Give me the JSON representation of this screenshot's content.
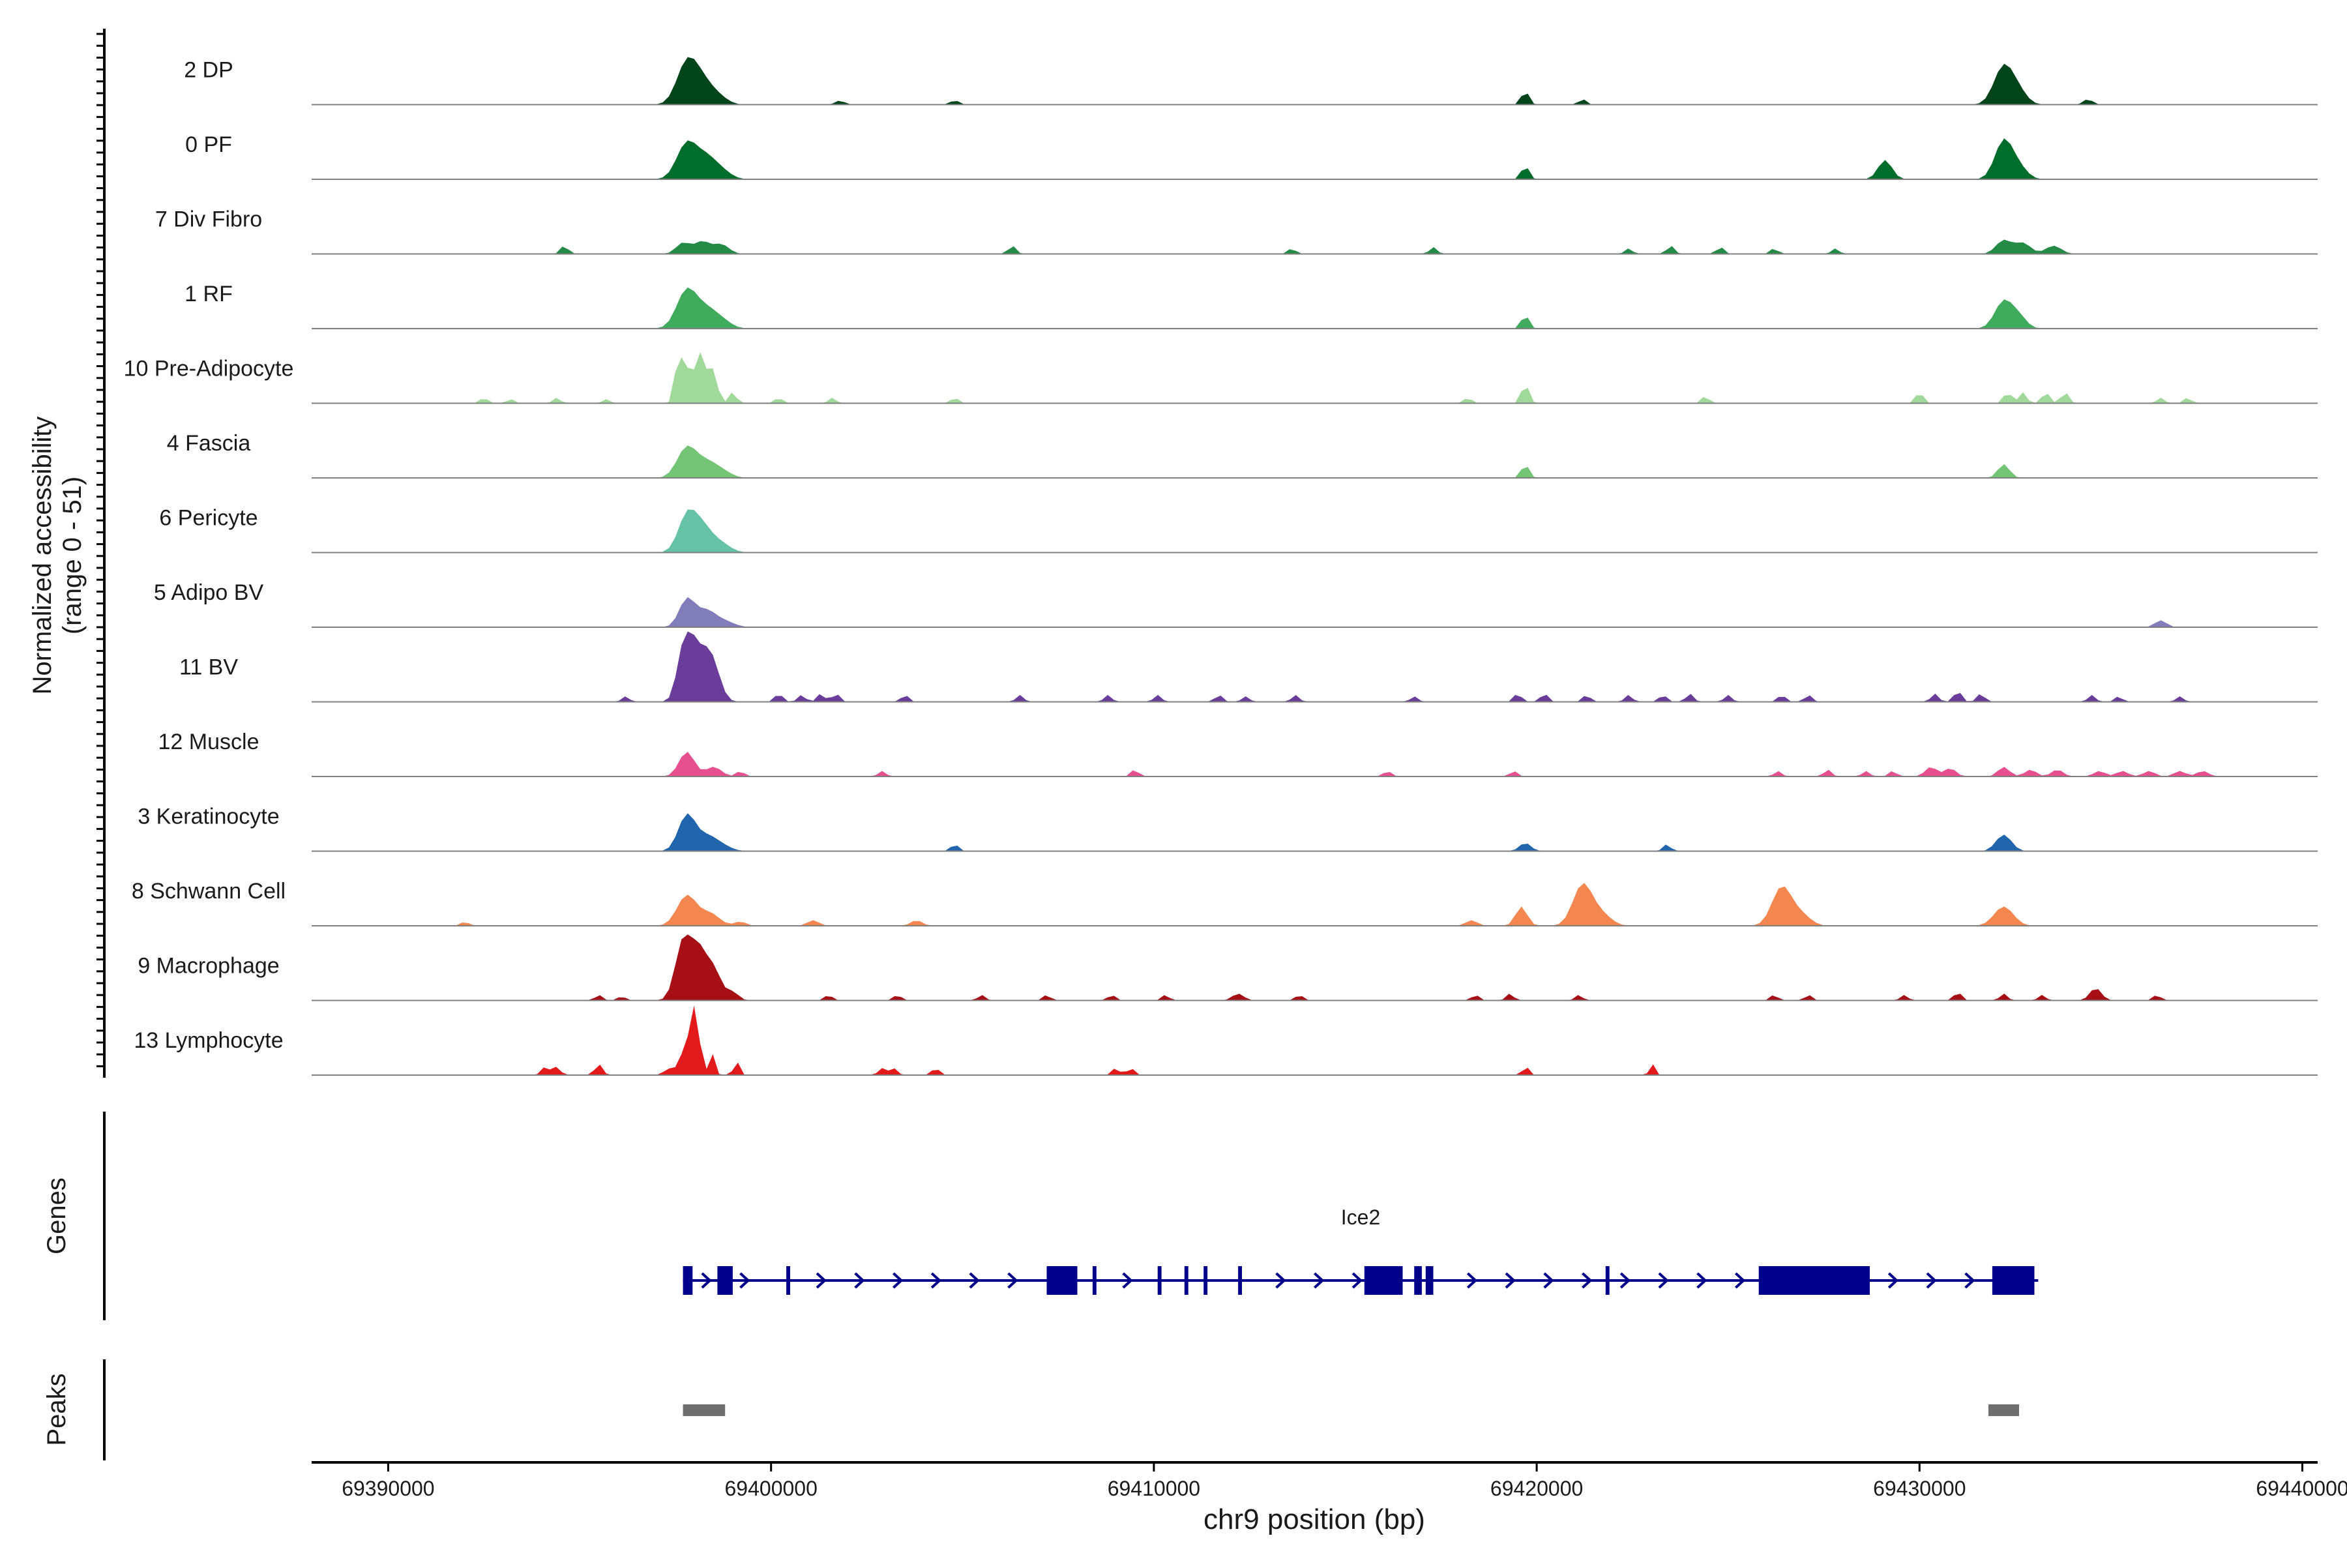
{
  "chart_data": {
    "type": "area",
    "title": "",
    "ylabel_line1": "Normalized accessibility",
    "ylabel_line2": "(range 0 - 51)",
    "yrange": [
      0,
      51
    ],
    "xlabel": "chr9 position (bp)",
    "xlim": [
      69388000,
      69440400
    ],
    "xticks": [
      69390000,
      69400000,
      69410000,
      69420000,
      69430000,
      69440000
    ],
    "xtick_labels": [
      "69390000",
      "69400000",
      "69410000",
      "69420000",
      "69430000",
      "69440000"
    ],
    "tracks": [
      {
        "name": "2 DP",
        "color": "#00441b",
        "peaks": [
          [
            69397800,
            30,
            260
          ],
          [
            69398200,
            14,
            250
          ],
          [
            69398600,
            6,
            250
          ],
          [
            69401800,
            3,
            120
          ],
          [
            69404800,
            3,
            120
          ],
          [
            69419700,
            10,
            100
          ],
          [
            69421200,
            4,
            100
          ],
          [
            69432200,
            28,
            250
          ],
          [
            69432600,
            8,
            220
          ],
          [
            69434400,
            4,
            120
          ]
        ]
      },
      {
        "name": "0 PF",
        "color": "#006d2c",
        "peaks": [
          [
            69397800,
            26,
            260
          ],
          [
            69398300,
            14,
            250
          ],
          [
            69398700,
            6,
            250
          ],
          [
            69419700,
            10,
            100
          ],
          [
            69429100,
            14,
            180
          ],
          [
            69432200,
            28,
            230
          ],
          [
            69432600,
            8,
            220
          ]
        ]
      },
      {
        "name": "7 Div Fibro",
        "color": "#238b45",
        "peaks": [
          [
            69394600,
            6,
            100
          ],
          [
            69397700,
            8,
            180
          ],
          [
            69398200,
            9,
            200
          ],
          [
            69398700,
            7,
            200
          ],
          [
            69406300,
            6,
            100
          ],
          [
            69413600,
            4,
            100
          ],
          [
            69417300,
            5,
            100
          ],
          [
            69422400,
            4,
            100
          ],
          [
            69423500,
            6,
            100
          ],
          [
            69424800,
            5,
            100
          ],
          [
            69426200,
            4,
            100
          ],
          [
            69427800,
            4,
            100
          ],
          [
            69432200,
            10,
            200
          ],
          [
            69432700,
            8,
            200
          ],
          [
            69433500,
            6,
            200
          ]
        ]
      },
      {
        "name": "1 RF",
        "color": "#41ab5d",
        "peaks": [
          [
            69397800,
            28,
            260
          ],
          [
            69398300,
            12,
            250
          ],
          [
            69398700,
            6,
            250
          ],
          [
            69419700,
            10,
            100
          ],
          [
            69432200,
            20,
            230
          ],
          [
            69432600,
            8,
            200
          ]
        ]
      },
      {
        "name": "10 Pre-Adipocyte",
        "color": "#a1d99b",
        "peaks": [
          [
            69392500,
            4,
            100
          ],
          [
            69393200,
            3,
            100
          ],
          [
            69394400,
            4,
            100
          ],
          [
            69395700,
            3,
            100
          ],
          [
            69397600,
            38,
            100
          ],
          [
            69397900,
            30,
            100
          ],
          [
            69398200,
            40,
            100
          ],
          [
            69398500,
            25,
            100
          ],
          [
            69399000,
            8,
            100
          ],
          [
            69400200,
            4,
            100
          ],
          [
            69401600,
            4,
            100
          ],
          [
            69404800,
            4,
            100
          ],
          [
            69418200,
            4,
            100
          ],
          [
            69419700,
            14,
            100
          ],
          [
            69424400,
            5,
            100
          ],
          [
            69430000,
            8,
            100
          ],
          [
            69432300,
            8,
            100
          ],
          [
            69432700,
            8,
            100
          ],
          [
            69433300,
            8,
            100
          ],
          [
            69433800,
            8,
            100
          ],
          [
            69436300,
            4,
            100
          ],
          [
            69437000,
            4,
            100
          ]
        ]
      },
      {
        "name": "4 Fascia",
        "color": "#74c476",
        "peaks": [
          [
            69397800,
            22,
            250
          ],
          [
            69398300,
            10,
            250
          ],
          [
            69398700,
            5,
            250
          ],
          [
            69419700,
            10,
            100
          ],
          [
            69432200,
            10,
            150
          ]
        ]
      },
      {
        "name": "6 Pericyte",
        "color": "#66c2a4",
        "peaks": [
          [
            69397800,
            25,
            230
          ],
          [
            69398200,
            18,
            260
          ],
          [
            69398700,
            6,
            250
          ]
        ]
      },
      {
        "name": "5 Adipo BV",
        "color": "#807dba",
        "peaks": [
          [
            69397800,
            20,
            200
          ],
          [
            69398300,
            12,
            250
          ],
          [
            69398800,
            4,
            250
          ],
          [
            69436300,
            5,
            150
          ]
        ]
      },
      {
        "name": "11 BV",
        "color": "#6a3d9a",
        "peaks": [
          [
            69396200,
            4,
            100
          ],
          [
            69397600,
            6,
            100
          ],
          [
            69397800,
            42,
            200
          ],
          [
            69398200,
            30,
            250
          ],
          [
            69398500,
            18,
            200
          ],
          [
            69400200,
            6,
            100
          ],
          [
            69400800,
            5,
            100
          ],
          [
            69401300,
            6,
            100
          ],
          [
            69401700,
            6,
            100
          ],
          [
            69403500,
            5,
            100
          ],
          [
            69406500,
            5,
            100
          ],
          [
            69408800,
            5,
            100
          ],
          [
            69410100,
            5,
            100
          ],
          [
            69411700,
            5,
            100
          ],
          [
            69412400,
            4,
            100
          ],
          [
            69413700,
            5,
            100
          ],
          [
            69416800,
            4,
            100
          ],
          [
            69419500,
            6,
            100
          ],
          [
            69420200,
            6,
            100
          ],
          [
            69421300,
            5,
            100
          ],
          [
            69422400,
            5,
            100
          ],
          [
            69423300,
            5,
            100
          ],
          [
            69424000,
            6,
            100
          ],
          [
            69425000,
            5,
            100
          ],
          [
            69426400,
            5,
            100
          ],
          [
            69427100,
            5,
            100
          ],
          [
            69430400,
            6,
            100
          ],
          [
            69431000,
            8,
            100
          ],
          [
            69431600,
            6,
            100
          ],
          [
            69434500,
            5,
            100
          ],
          [
            69435200,
            4,
            100
          ],
          [
            69436800,
            4,
            100
          ]
        ]
      },
      {
        "name": "12 Muscle",
        "color": "#e7508f",
        "peaks": [
          [
            69397800,
            18,
            200
          ],
          [
            69398500,
            7,
            200
          ],
          [
            69399200,
            4,
            100
          ],
          [
            69402900,
            4,
            100
          ],
          [
            69409500,
            5,
            100
          ],
          [
            69416100,
            4,
            100
          ],
          [
            69419400,
            4,
            100
          ],
          [
            69426300,
            4,
            100
          ],
          [
            69427600,
            5,
            100
          ],
          [
            69428600,
            4,
            100
          ],
          [
            69429300,
            4,
            100
          ],
          [
            69430300,
            7,
            150
          ],
          [
            69430800,
            6,
            150
          ],
          [
            69432200,
            7,
            150
          ],
          [
            69432900,
            5,
            150
          ],
          [
            69433600,
            5,
            150
          ],
          [
            69434700,
            4,
            150
          ],
          [
            69435300,
            4,
            150
          ],
          [
            69436000,
            4,
            150
          ],
          [
            69436800,
            4,
            150
          ],
          [
            69437400,
            4,
            150
          ]
        ]
      },
      {
        "name": "3 Keratinocyte",
        "color": "#2166ac",
        "peaks": [
          [
            69397800,
            26,
            220
          ],
          [
            69398300,
            10,
            250
          ],
          [
            69398700,
            4,
            250
          ],
          [
            69404800,
            5,
            100
          ],
          [
            69419700,
            6,
            150
          ],
          [
            69423400,
            5,
            100
          ],
          [
            69432200,
            12,
            200
          ]
        ]
      },
      {
        "name": "8 Schwann Cell",
        "color": "#f4874f",
        "peaks": [
          [
            69392000,
            3,
            100
          ],
          [
            69397800,
            22,
            250
          ],
          [
            69398400,
            9,
            250
          ],
          [
            69399200,
            3,
            150
          ],
          [
            69401100,
            4,
            150
          ],
          [
            69403800,
            4,
            150
          ],
          [
            69418300,
            4,
            150
          ],
          [
            69419600,
            14,
            150
          ],
          [
            69421200,
            30,
            250
          ],
          [
            69421700,
            8,
            250
          ],
          [
            69426400,
            28,
            250
          ],
          [
            69426900,
            8,
            250
          ],
          [
            69432200,
            14,
            250
          ]
        ]
      },
      {
        "name": "9 Macrophage",
        "color": "#a50f15",
        "peaks": [
          [
            69395500,
            4,
            100
          ],
          [
            69396100,
            3,
            100
          ],
          [
            69397700,
            42,
            200
          ],
          [
            69398100,
            34,
            200
          ],
          [
            69398500,
            22,
            200
          ],
          [
            69399000,
            6,
            150
          ],
          [
            69401500,
            4,
            100
          ],
          [
            69403300,
            4,
            100
          ],
          [
            69405500,
            4,
            100
          ],
          [
            69407200,
            4,
            100
          ],
          [
            69408900,
            4,
            100
          ],
          [
            69410300,
            4,
            100
          ],
          [
            69412200,
            5,
            150
          ],
          [
            69413800,
            4,
            100
          ],
          [
            69418400,
            4,
            100
          ],
          [
            69419300,
            5,
            100
          ],
          [
            69421100,
            4,
            100
          ],
          [
            69426200,
            4,
            100
          ],
          [
            69427100,
            4,
            100
          ],
          [
            69429600,
            4,
            100
          ],
          [
            69431000,
            6,
            100
          ],
          [
            69432200,
            5,
            100
          ],
          [
            69433200,
            4,
            100
          ],
          [
            69434600,
            9,
            150
          ],
          [
            69436200,
            4,
            100
          ]
        ]
      },
      {
        "name": "13 Lymphocyte",
        "color": "#e31a1c",
        "peaks": [
          [
            69394100,
            6,
            100
          ],
          [
            69394400,
            6,
            100
          ],
          [
            69395500,
            8,
            100
          ],
          [
            69397300,
            5,
            100
          ],
          [
            69397600,
            22,
            60
          ],
          [
            69397800,
            30,
            60
          ],
          [
            69398000,
            51,
            60
          ],
          [
            69398200,
            28,
            60
          ],
          [
            69398500,
            16,
            60
          ],
          [
            69399100,
            10,
            80
          ],
          [
            69402900,
            5,
            100
          ],
          [
            69403200,
            5,
            100
          ],
          [
            69404300,
            5,
            100
          ],
          [
            69409000,
            5,
            100
          ],
          [
            69409400,
            5,
            100
          ],
          [
            69419700,
            10,
            60
          ],
          [
            69423000,
            10,
            60
          ]
        ]
      }
    ],
    "genes_label": "Genes",
    "gene": {
      "name": "Ice2",
      "start": 69397700,
      "end": 69433100,
      "strand": "+",
      "exons": [
        [
          69397700,
          69397950
        ],
        [
          69398600,
          69399000
        ],
        [
          69400400,
          69400500
        ],
        [
          69407200,
          69408000
        ],
        [
          69408400,
          69408500
        ],
        [
          69410100,
          69410200
        ],
        [
          69410800,
          69410900
        ],
        [
          69411300,
          69411400
        ],
        [
          69412200,
          69412300
        ],
        [
          69415500,
          69416500
        ],
        [
          69416800,
          69417000
        ],
        [
          69417100,
          69417300
        ],
        [
          69421800,
          69421900
        ],
        [
          69425800,
          69428700
        ],
        [
          69431900,
          69433000
        ]
      ],
      "color": "#00008B"
    },
    "peaks_label": "Peaks",
    "peak_regions": [
      [
        69397700,
        69398800
      ],
      [
        69431800,
        69432600
      ]
    ],
    "peak_color": "#6e6e6e"
  }
}
